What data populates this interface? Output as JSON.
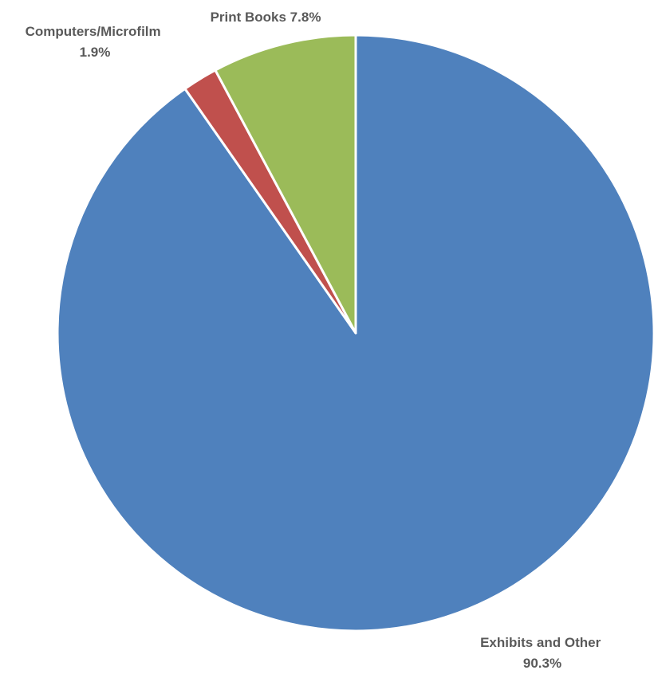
{
  "chart_data": {
    "type": "pie",
    "title": "",
    "start_angle_deg": 0,
    "direction": "clockwise",
    "slices": [
      {
        "category": "Exhibits and Other",
        "value": 90.3,
        "value_label": "90.3%",
        "color": "#4F81BD"
      },
      {
        "category": "Computers/Microfilm",
        "value": 1.9,
        "value_label": "1.9%",
        "color": "#C0504D"
      },
      {
        "category": "Print Books",
        "value": 7.8,
        "value_label": "7.8%",
        "color": "#9BBB59"
      }
    ],
    "labels": [
      {
        "lines": [
          "Exhibits and Other",
          "90.3%"
        ]
      },
      {
        "lines": [
          "Computers/Microfilm",
          "1.9%"
        ]
      },
      {
        "lines": [
          "Print Books 7.8%"
        ]
      }
    ],
    "legend": "none"
  }
}
